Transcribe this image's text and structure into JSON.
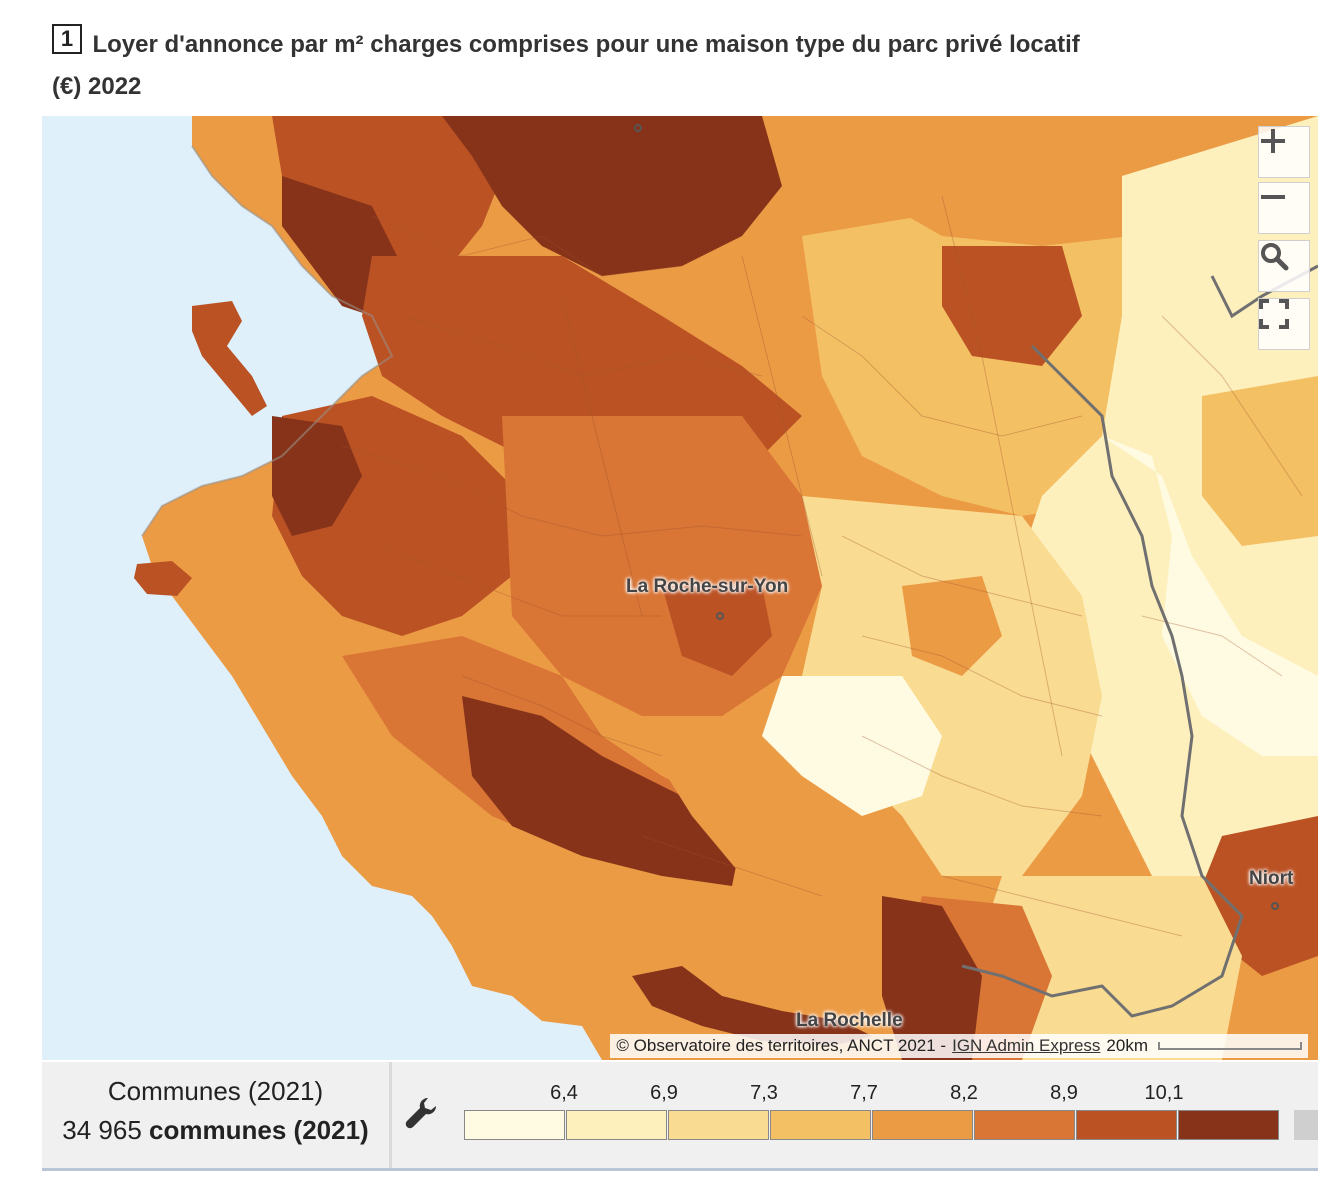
{
  "title": {
    "number": "1",
    "text": "Loyer d'annonce par m² charges comprises pour une maison type du parc privé locatif (€) 2022"
  },
  "controls": {
    "zoom_in_icon": "plus-icon",
    "zoom_out_icon": "minus-icon",
    "search_icon": "magnifier-icon",
    "fullscreen_icon": "fullscreen-icon"
  },
  "cities": [
    {
      "name": "La Roche-sur-Yon"
    },
    {
      "name": "Niort"
    },
    {
      "name": "La Rochelle"
    }
  ],
  "attribution": {
    "text": "© Observatoire des territoires, ANCT 2021 -",
    "link": "IGN Admin Express",
    "scale": "20km"
  },
  "legend": {
    "unit_label": "Communes (2021)",
    "count_number": "34 965",
    "count_suffix": "communes (2021)",
    "thresholds": [
      "6,4",
      "6,9",
      "7,3",
      "7,7",
      "8,2",
      "8,9",
      "10,1"
    ],
    "colors": [
      "#fffbe2",
      "#fdf0bd",
      "#f9dc92",
      "#f4c064",
      "#ec9b45",
      "#d97535",
      "#bb5224",
      "#86331a"
    ]
  }
}
